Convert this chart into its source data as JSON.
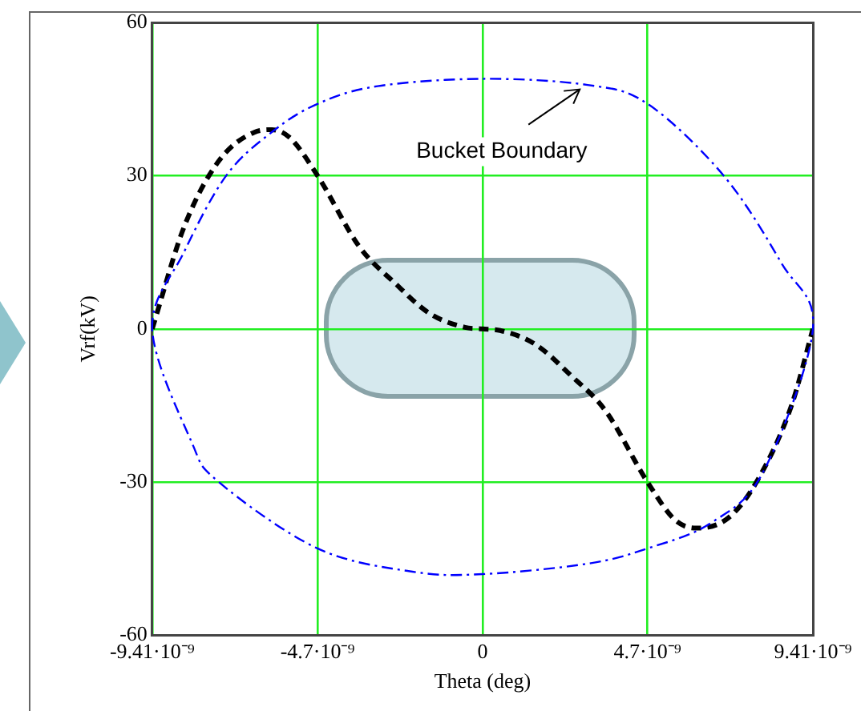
{
  "chart_data": {
    "type": "line",
    "xlabel": "Theta (deg)",
    "ylabel": "Vrf(kV)",
    "xlim": [
      -9.41e-09,
      9.41e-09
    ],
    "xticks": [
      {
        "value": -9.41e-09,
        "label": "-9.41·10⁻⁹"
      },
      {
        "value": -4.7e-09,
        "label": "-4.7·10⁻⁹"
      },
      0,
      {
        "value": 4.7e-09,
        "label": "4.7·10⁻⁹"
      },
      {
        "value": 9.41e-09,
        "label": "9.41·10⁻⁹"
      }
    ],
    "ylim": [
      -60,
      60
    ],
    "yticks": [
      -60,
      -30,
      0,
      30,
      60
    ],
    "grid": true,
    "legend": false,
    "marker": "none",
    "annotations": [
      "Bucket Boundary"
    ],
    "series": [
      {
        "color": "#000000",
        "line_style": "dashed",
        "x": [
          -9.41e-09,
          -8.5e-09,
          -7.5e-09,
          -6.5e-09,
          -6e-09,
          -5.5e-09,
          -4.7e-09,
          -3.5e-09,
          -2.5e-09,
          -1.5e-09,
          -5e-10,
          0,
          5e-10,
          1.5e-09,
          2.5e-09,
          3.5e-09,
          4.7e-09,
          5.5e-09,
          6.1e-09,
          7e-09,
          7.8e-09,
          8.8e-09,
          9.41e-09
        ],
        "values": [
          0,
          20,
          33,
          38.5,
          39,
          37.5,
          30,
          16,
          9,
          3,
          0.3,
          0,
          -0.3,
          -3,
          -9,
          -16,
          -30,
          -37.5,
          -39,
          -37,
          -30,
          -15,
          0
        ]
      }
    ]
  }
}
